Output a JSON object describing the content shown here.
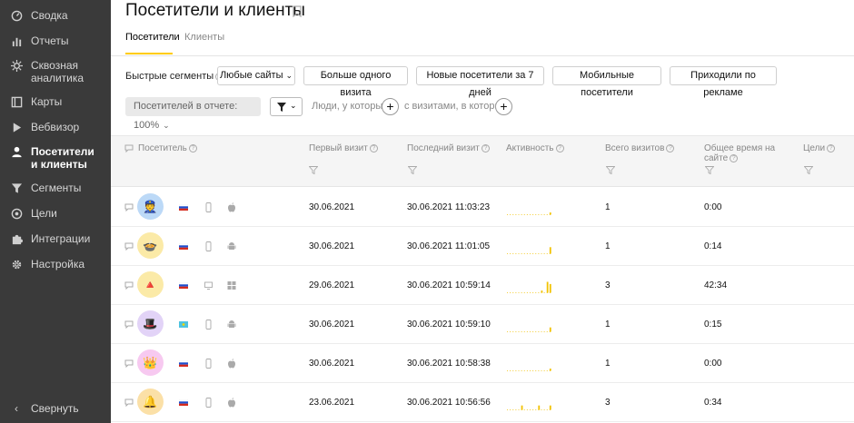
{
  "sidebar": {
    "items": [
      {
        "label": "Сводка",
        "icon": "dashboard-icon",
        "active": false
      },
      {
        "label": "Отчеты",
        "icon": "bar-chart-icon",
        "active": false
      },
      {
        "label": "Сквозная аналитика",
        "icon": "crosscut-icon",
        "active": false
      },
      {
        "label": "Карты",
        "icon": "map-icon",
        "active": false
      },
      {
        "label": "Вебвизор",
        "icon": "play-icon",
        "active": false
      },
      {
        "label": "Посетители и клиенты",
        "icon": "person-icon",
        "active": true
      },
      {
        "label": "Сегменты",
        "icon": "funnel-icon",
        "active": false
      },
      {
        "label": "Цели",
        "icon": "target-icon",
        "active": false
      },
      {
        "label": "Интеграции",
        "icon": "puzzle-icon",
        "active": false
      },
      {
        "label": "Настройка",
        "icon": "gear-icon",
        "active": false
      }
    ],
    "collapse_label": "Свернуть"
  },
  "header": {
    "title": "Посетители и клиенты",
    "tabs": [
      {
        "label": "Посетители",
        "active": true
      },
      {
        "label": "Клиенты",
        "active": false
      }
    ]
  },
  "segments": {
    "label": "Быстрые сегменты",
    "buttons": [
      "Любые сайты",
      "Больше одного визита",
      "Новые посетители за 7 дней",
      "Мобильные посетители",
      "Приходили по рекламе"
    ]
  },
  "filters": {
    "report_share": "Посетителей в отчете: 100%",
    "people_label": "Люди, у которых",
    "visits_label": "с визитами, в которых"
  },
  "table": {
    "columns": [
      "Посетитель",
      "Первый визит",
      "Последний визит",
      "Активность",
      "Всего визитов",
      "Общее время на сайте",
      "Цели"
    ],
    "rows": [
      {
        "first": "30.06.2021",
        "last": "30.06.2021 11:03:23",
        "visits": "1",
        "time": "0:00",
        "avatar_color": "#bcd9f7",
        "avatar_glyph": "👮",
        "flag": "ru",
        "device": "mobile",
        "os": "apple",
        "activity": [
          0,
          0,
          0,
          0,
          0,
          0,
          0,
          0,
          0,
          0,
          0,
          0,
          0,
          0,
          0,
          1
        ]
      },
      {
        "first": "30.06.2021",
        "last": "30.06.2021 11:01:05",
        "visits": "1",
        "time": "0:14",
        "avatar_color": "#fbeaa7",
        "avatar_glyph": "🍲",
        "flag": "ru",
        "device": "mobile",
        "os": "android",
        "activity": [
          0,
          0,
          0,
          0,
          0,
          0,
          0,
          0,
          0,
          0,
          0,
          0,
          0,
          0,
          0,
          3
        ]
      },
      {
        "first": "29.06.2021",
        "last": "30.06.2021 10:59:14",
        "visits": "3",
        "time": "42:34",
        "avatar_color": "#fbeaa7",
        "avatar_glyph": "🔺",
        "flag": "ru",
        "device": "desktop",
        "os": "windows",
        "activity": [
          0,
          0,
          0,
          0,
          0,
          0,
          0,
          0,
          0,
          0,
          0,
          0,
          1,
          0,
          5,
          4
        ]
      },
      {
        "first": "30.06.2021",
        "last": "30.06.2021 10:59:10",
        "visits": "1",
        "time": "0:15",
        "avatar_color": "#e2d3f7",
        "avatar_glyph": "🎩",
        "flag": "kz",
        "device": "mobile",
        "os": "android",
        "activity": [
          0,
          0,
          0,
          0,
          0,
          0,
          0,
          0,
          0,
          0,
          0,
          0,
          0,
          0,
          0,
          2
        ]
      },
      {
        "first": "30.06.2021",
        "last": "30.06.2021 10:58:38",
        "visits": "1",
        "time": "0:00",
        "avatar_color": "#f7c9f0",
        "avatar_glyph": "👑",
        "flag": "ru",
        "device": "mobile",
        "os": "apple",
        "activity": [
          0,
          0,
          0,
          0,
          0,
          0,
          0,
          0,
          0,
          0,
          0,
          0,
          0,
          0,
          0,
          1
        ]
      },
      {
        "first": "23.06.2021",
        "last": "30.06.2021 10:56:56",
        "visits": "3",
        "time": "0:34",
        "avatar_color": "#fbe0a7",
        "avatar_glyph": "🔔",
        "flag": "ru",
        "device": "mobile",
        "os": "apple",
        "activity": [
          0,
          0,
          0,
          0,
          0,
          2,
          0,
          0,
          0,
          0,
          0,
          2,
          0,
          0,
          0,
          2
        ]
      }
    ]
  },
  "colors": {
    "sidebar_bg": "#3a3a3a",
    "accent": "#ffcc00",
    "activity_bar": "#f2c200"
  }
}
